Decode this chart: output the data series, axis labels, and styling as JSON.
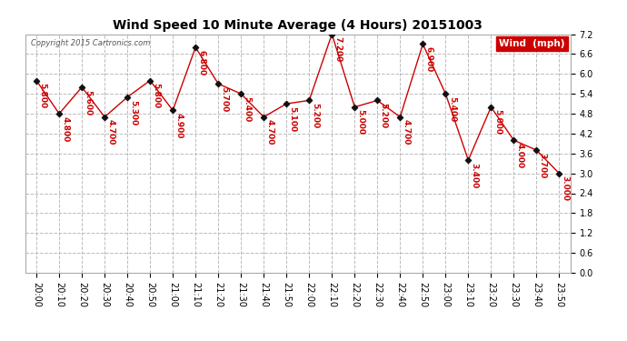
{
  "title": "Wind Speed 10 Minute Average (4 Hours) 20151003",
  "copyright": "Copyright 2015 Cartronics.com",
  "legend_label": "Wind  (mph)",
  "x_labels": [
    "20:00",
    "20:10",
    "20:20",
    "20:30",
    "20:40",
    "20:50",
    "21:00",
    "21:10",
    "21:20",
    "21:30",
    "21:40",
    "21:50",
    "22:00",
    "22:10",
    "22:20",
    "22:30",
    "22:40",
    "22:50",
    "23:00",
    "23:10",
    "23:20",
    "23:30",
    "23:40",
    "23:50"
  ],
  "y_values": [
    5.8,
    4.8,
    5.6,
    4.7,
    5.3,
    5.8,
    4.9,
    6.8,
    5.7,
    5.4,
    4.7,
    5.1,
    5.2,
    7.2,
    5.0,
    5.2,
    4.7,
    6.9,
    5.4,
    3.4,
    5.0,
    4.0,
    3.7,
    3.0
  ],
  "line_color": "#cc0000",
  "marker_color": "#111111",
  "label_color": "#cc0000",
  "bg_color": "#ffffff",
  "grid_color": "#bbbbbb",
  "ylim_min": 0.0,
  "ylim_max": 7.2,
  "ytick_step": 0.6,
  "title_fontsize": 10,
  "label_fontsize": 6.5,
  "axis_tick_fontsize": 7,
  "legend_bg": "#cc0000",
  "legend_text_color": "#ffffff"
}
